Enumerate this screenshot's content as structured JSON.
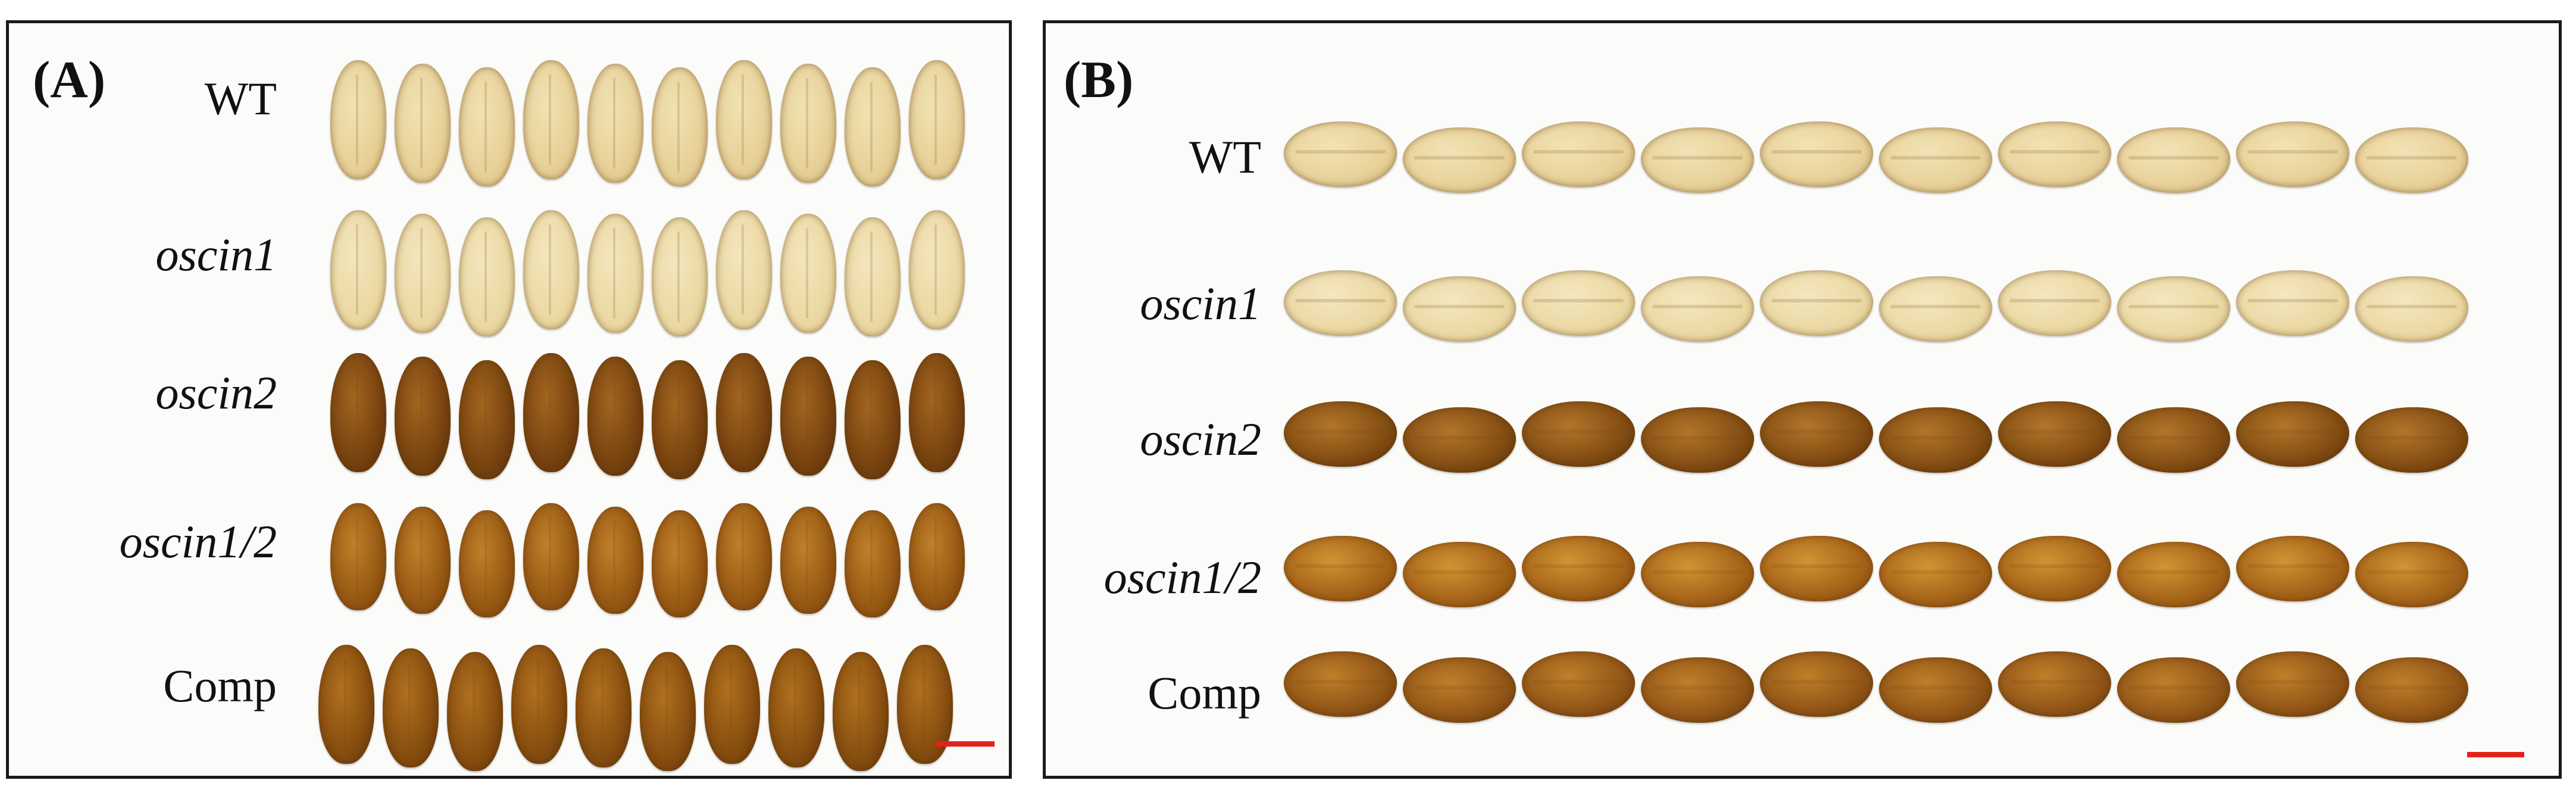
{
  "panels": [
    {
      "label": "(A)",
      "rows": [
        {
          "name": "WT",
          "italic": false,
          "seeds": 10,
          "colors": [
            "#e8d29a",
            "#dcc083",
            "#f1e2b4"
          ]
        },
        {
          "name": "oscin1",
          "italic": true,
          "seeds": 10,
          "colors": [
            "#ecdaa6",
            "#e3cc90",
            "#f3e6bd"
          ]
        },
        {
          "name": "oscin2",
          "italic": true,
          "seeds": 10,
          "colors": [
            "#7a4510",
            "#5a2f08",
            "#a2651f"
          ]
        },
        {
          "name": "oscin1/2",
          "italic": true,
          "seeds": 10,
          "colors": [
            "#9a5b14",
            "#7a420c",
            "#c0802a"
          ]
        },
        {
          "name": "Comp",
          "italic": false,
          "seeds": 10,
          "colors": [
            "#8a5010",
            "#64360a",
            "#b0701f"
          ]
        }
      ],
      "scalebar_color": "#e3231b"
    },
    {
      "label": "(B)",
      "rows": [
        {
          "name": "WT",
          "italic": false,
          "seeds": 10,
          "colors": [
            "#e9d39c",
            "#d9bf82",
            "#f2e3b6"
          ]
        },
        {
          "name": "oscin1",
          "italic": true,
          "seeds": 10,
          "colors": [
            "#ecdaa6",
            "#e0c98c",
            "#f4e7c0"
          ]
        },
        {
          "name": "oscin2",
          "italic": true,
          "seeds": 10,
          "colors": [
            "#865014",
            "#5c3008",
            "#b2752a"
          ]
        },
        {
          "name": "oscin1/2",
          "italic": true,
          "seeds": 10,
          "colors": [
            "#a8661a",
            "#84480e",
            "#d29433"
          ]
        },
        {
          "name": "Comp",
          "italic": false,
          "seeds": 10,
          "colors": [
            "#955818",
            "#6c3c0c",
            "#bf7f2a"
          ]
        }
      ],
      "scalebar_color": "#e3231b"
    }
  ]
}
